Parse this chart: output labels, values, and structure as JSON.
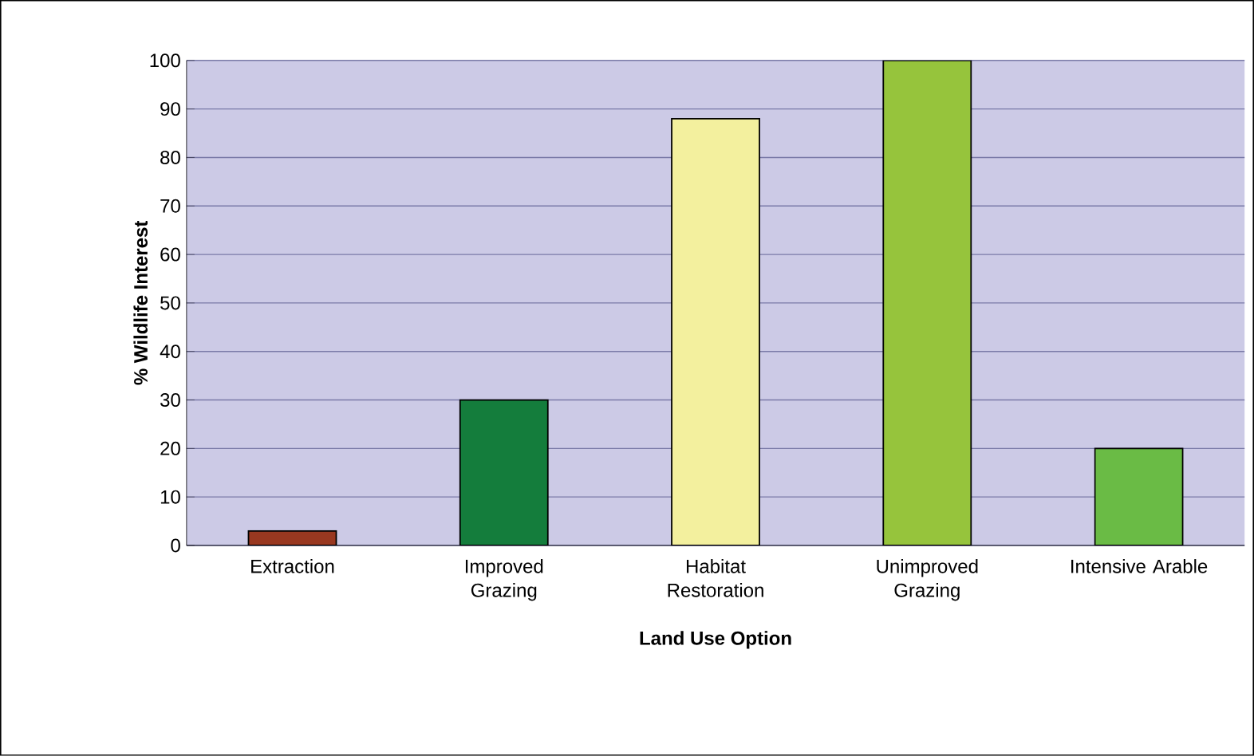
{
  "chart_data": {
    "type": "bar",
    "xlabel": "Land Use Option",
    "ylabel": "% Wildlife Interest",
    "categories": [
      "Extraction",
      "Improved Grazing",
      "Habitat Restoration",
      "Unimproved Grazing",
      "Intensive Arable"
    ],
    "values": [
      3,
      30,
      88,
      100,
      20
    ],
    "colors": [
      "#993820",
      "#147d3c",
      "#f3f09e",
      "#96c43c",
      "#6abb45"
    ],
    "ylim": [
      0,
      100
    ],
    "yticks": [
      0,
      10,
      20,
      30,
      40,
      50,
      60,
      70,
      80,
      90,
      100
    ],
    "grid": "y"
  }
}
